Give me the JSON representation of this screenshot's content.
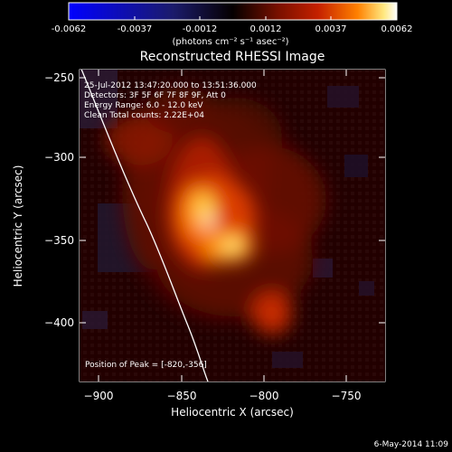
{
  "colorbar": {
    "ticks": [
      "-0.0062",
      "-0.0037",
      "-0.0012",
      "0.0012",
      "0.0037",
      "0.0062"
    ],
    "units": "(photons cm⁻² s⁻¹ asec⁻²)",
    "colors": {
      "low": "#0000ff",
      "mid": "#000000",
      "high": "#ffffff"
    }
  },
  "plot": {
    "title": "Reconstructed RHESSI Image",
    "xlabel": "Heliocentric X (arcsec)",
    "ylabel": "Heliocentric Y (arcsec)",
    "x_ticks": [
      "−900",
      "−850",
      "−800",
      "−750"
    ],
    "y_ticks": [
      "−250",
      "−300",
      "−350",
      "−400"
    ],
    "info": {
      "line1": "25-Jul-2012 13:47:20.000 to 13:51:36.000",
      "line2": "Detectors: 3F 5F 6F 7F 8F 9F, Att 0",
      "line3": "Energy Range: 6.0 - 12.0 keV",
      "line4": "Clean     Total counts: 2.22E+04"
    },
    "peak_label": "Position of Peak = [-820,-356]",
    "footer": "6-May-2014 11:09"
  }
}
